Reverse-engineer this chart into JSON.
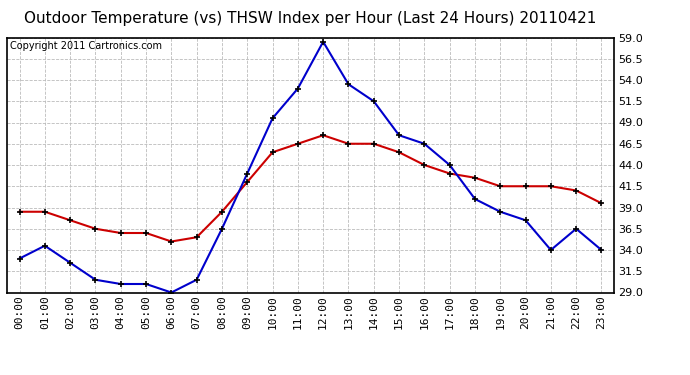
{
  "title": "Outdoor Temperature (vs) THSW Index per Hour (Last 24 Hours) 20110421",
  "copyright": "Copyright 2011 Cartronics.com",
  "hours": [
    "00:00",
    "01:00",
    "02:00",
    "03:00",
    "04:00",
    "05:00",
    "06:00",
    "07:00",
    "08:00",
    "09:00",
    "10:00",
    "11:00",
    "12:00",
    "13:00",
    "14:00",
    "15:00",
    "16:00",
    "17:00",
    "18:00",
    "19:00",
    "20:00",
    "21:00",
    "22:00",
    "23:00"
  ],
  "temp_red": [
    38.5,
    38.5,
    37.5,
    36.5,
    36.0,
    36.0,
    35.0,
    35.5,
    38.5,
    42.0,
    45.5,
    46.5,
    47.5,
    46.5,
    46.5,
    45.5,
    44.0,
    43.0,
    42.5,
    41.5,
    41.5,
    41.5,
    41.0,
    39.5
  ],
  "thsw_blue": [
    33.0,
    34.5,
    32.5,
    30.5,
    30.0,
    30.0,
    29.0,
    30.5,
    36.5,
    43.0,
    49.5,
    53.0,
    58.5,
    53.5,
    51.5,
    47.5,
    46.5,
    44.0,
    40.0,
    38.5,
    37.5,
    34.0,
    36.5,
    34.0
  ],
  "ylim": [
    29.0,
    59.0
  ],
  "yticks": [
    29.0,
    31.5,
    34.0,
    36.5,
    39.0,
    41.5,
    44.0,
    46.5,
    49.0,
    51.5,
    54.0,
    56.5,
    59.0
  ],
  "bg_color": "#ffffff",
  "plot_bg": "#ffffff",
  "grid_color": "#bbbbbb",
  "red_color": "#cc0000",
  "blue_color": "#0000cc",
  "title_fontsize": 11,
  "tick_fontsize": 8,
  "copyright_fontsize": 7
}
